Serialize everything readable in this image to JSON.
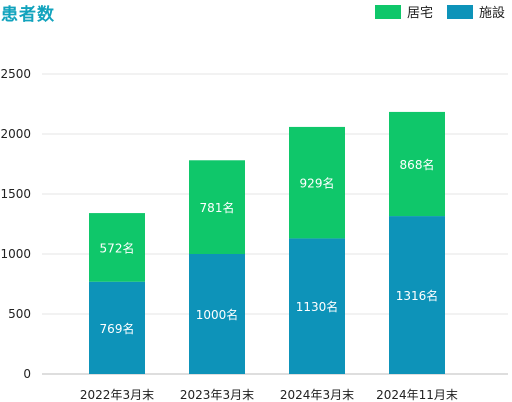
{
  "chart_data": {
    "type": "bar",
    "stacked": true,
    "title": "患者数",
    "categories": [
      "2022年3月末",
      "2023年3月末",
      "2024年3月末",
      "2024年11月末"
    ],
    "series": [
      {
        "name": "施設",
        "values": [
          769,
          1000,
          1130,
          1316
        ],
        "labels": [
          "769名",
          "1000名",
          "1130名",
          "1316名"
        ],
        "color": "#0d93b9"
      },
      {
        "name": "居宅",
        "values": [
          572,
          781,
          929,
          868
        ],
        "labels": [
          "572名",
          "781名",
          "929名",
          "868名"
        ],
        "color": "#0fc76a"
      }
    ],
    "ylim": [
      0,
      2500
    ],
    "yticks": [
      "0",
      "500",
      "1000",
      "1500",
      "2000",
      "2500"
    ],
    "grid": true,
    "legend_position": "top-right",
    "legend_order": [
      "居宅",
      "施設"
    ]
  }
}
